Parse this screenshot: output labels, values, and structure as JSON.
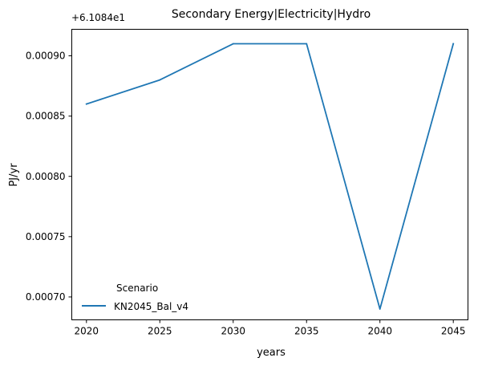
{
  "chart_data": {
    "type": "line",
    "title": "Secondary Energy|Electricity|Hydro",
    "xlabel": "years",
    "ylabel": "PJ/yr",
    "y_offset_label": "+6.1084e1",
    "x": [
      2020,
      2025,
      2030,
      2035,
      2040,
      2045
    ],
    "x_ticks": [
      2020,
      2025,
      2030,
      2035,
      2040,
      2045
    ],
    "y_ticks": [
      0.0007,
      0.00075,
      0.0008,
      0.00085,
      0.0009
    ],
    "y_tick_labels": [
      "0.00070",
      "0.00075",
      "0.00080",
      "0.00085",
      "0.00090"
    ],
    "xlim": [
      2019,
      2046
    ],
    "ylim": [
      0.000681,
      0.000922
    ],
    "series": [
      {
        "name": "KN2045_Bal_v4",
        "values": [
          0.00086,
          0.00088,
          0.00091,
          0.00091,
          0.00069,
          0.00091
        ],
        "color": "#1f77b4"
      }
    ],
    "legend": {
      "title": "Scenario",
      "placement": "lower-left"
    },
    "grid": false
  }
}
